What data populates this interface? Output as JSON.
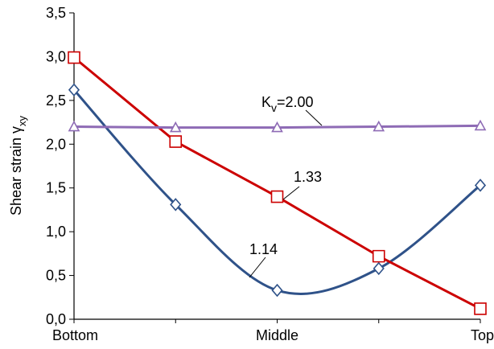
{
  "chart_data": {
    "type": "line",
    "y_label": {
      "text": "Shear strain γ",
      "subscript": "xy"
    },
    "categories": [
      "Bottom",
      null,
      "Middle",
      null,
      "Top"
    ],
    "ylim": [
      0,
      3.5
    ],
    "yticks": [
      {
        "value": 0,
        "label": "0,0"
      },
      {
        "value": 0.5,
        "label": "0,5"
      },
      {
        "value": 1,
        "label": "1,0"
      },
      {
        "value": 1.5,
        "label": "1,5"
      },
      {
        "value": 2,
        "label": "2,0"
      },
      {
        "value": 2.5,
        "label": "2,5"
      },
      {
        "value": 3,
        "label": "3,0"
      },
      {
        "value": 3.5,
        "label": "3,5"
      }
    ],
    "series": [
      {
        "label": [
          "1.14"
        ],
        "color": "#2f5289",
        "marker": "diamond",
        "smooth": true,
        "values": [
          2.62,
          1.31,
          0.33,
          0.58,
          1.53
        ]
      },
      {
        "label": [
          "1.33"
        ],
        "color": "#cc0000",
        "marker": "square",
        "smooth": false,
        "values": [
          2.99,
          2.03,
          1.4,
          0.72,
          0.12
        ]
      },
      {
        "label": [
          "K",
          "v",
          "=2.00"
        ],
        "color": "#8e6bb5",
        "marker": "triangle",
        "smooth": false,
        "values": [
          2.2,
          2.19,
          2.19,
          2.2,
          2.21
        ]
      }
    ]
  }
}
